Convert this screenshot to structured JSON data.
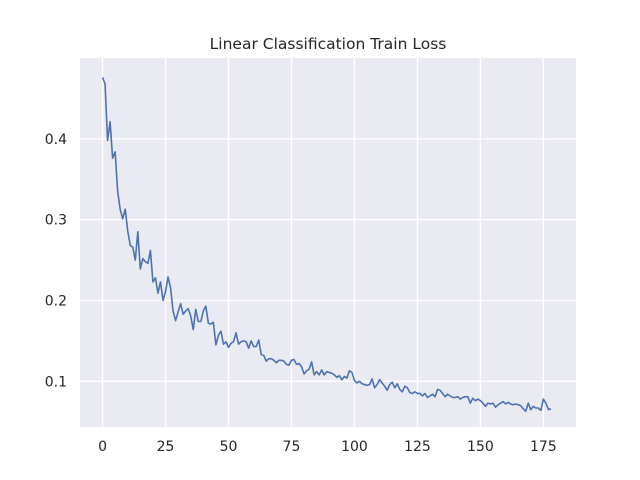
{
  "chart_data": {
    "type": "line",
    "title": "Linear Classification Train Loss",
    "xlabel": "",
    "ylabel": "",
    "xlim": [
      -8.95,
      187.95
    ],
    "ylim": [
      0.0435,
      0.5
    ],
    "xticks": [
      0,
      25,
      50,
      75,
      100,
      125,
      150,
      175
    ],
    "yticks": [
      0.1,
      0.2,
      0.3,
      0.4
    ],
    "ytick_labels": [
      "0.1",
      "0.2",
      "0.3",
      "0.4"
    ],
    "grid": true,
    "legend": "none",
    "colors": {
      "background": "#eaeaf2",
      "grid": "#ffffff",
      "line": "#4c72b0"
    },
    "series": [
      {
        "values": [
          0.476,
          0.468,
          0.398,
          0.421,
          0.376,
          0.384,
          0.335,
          0.313,
          0.301,
          0.313,
          0.286,
          0.268,
          0.266,
          0.25,
          0.285,
          0.239,
          0.252,
          0.248,
          0.246,
          0.262,
          0.223,
          0.228,
          0.209,
          0.223,
          0.2,
          0.211,
          0.229,
          0.216,
          0.187,
          0.175,
          0.186,
          0.196,
          0.183,
          0.187,
          0.19,
          0.181,
          0.164,
          0.189,
          0.174,
          0.174,
          0.187,
          0.193,
          0.172,
          0.171,
          0.173,
          0.145,
          0.157,
          0.162,
          0.146,
          0.149,
          0.142,
          0.147,
          0.149,
          0.16,
          0.146,
          0.149,
          0.15,
          0.149,
          0.141,
          0.15,
          0.143,
          0.143,
          0.151,
          0.133,
          0.132,
          0.125,
          0.128,
          0.128,
          0.126,
          0.123,
          0.126,
          0.126,
          0.125,
          0.121,
          0.12,
          0.126,
          0.127,
          0.121,
          0.122,
          0.118,
          0.109,
          0.113,
          0.115,
          0.124,
          0.108,
          0.112,
          0.108,
          0.114,
          0.108,
          0.112,
          0.111,
          0.11,
          0.108,
          0.105,
          0.107,
          0.102,
          0.106,
          0.104,
          0.113,
          0.111,
          0.101,
          0.098,
          0.1,
          0.097,
          0.096,
          0.095,
          0.096,
          0.103,
          0.092,
          0.096,
          0.102,
          0.098,
          0.094,
          0.089,
          0.096,
          0.099,
          0.092,
          0.097,
          0.09,
          0.087,
          0.094,
          0.092,
          0.086,
          0.085,
          0.087,
          0.085,
          0.085,
          0.082,
          0.085,
          0.08,
          0.082,
          0.084,
          0.081,
          0.09,
          0.089,
          0.085,
          0.081,
          0.084,
          0.082,
          0.08,
          0.08,
          0.081,
          0.078,
          0.08,
          0.081,
          0.081,
          0.073,
          0.079,
          0.076,
          0.078,
          0.076,
          0.073,
          0.069,
          0.073,
          0.072,
          0.073,
          0.068,
          0.071,
          0.073,
          0.075,
          0.072,
          0.074,
          0.072,
          0.071,
          0.072,
          0.071,
          0.07,
          0.066,
          0.063,
          0.073,
          0.065,
          0.069,
          0.067,
          0.067,
          0.064,
          0.078,
          0.073,
          0.065,
          0.066
        ]
      }
    ]
  }
}
